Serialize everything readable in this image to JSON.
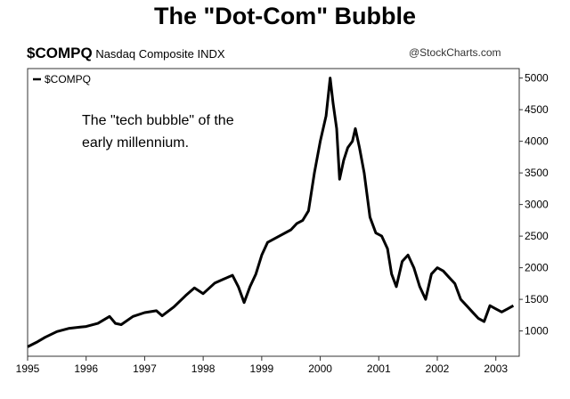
{
  "title": "The \"Dot-Com\" Bubble",
  "header": {
    "symbol": "$COMPQ",
    "name": "Nasdaq Composite",
    "exchange": "INDX",
    "credit": "@StockCharts.com"
  },
  "chart_data": {
    "type": "line",
    "title": "The \"Dot-Com\" Bubble",
    "legend": "$COMPQ",
    "legend_position": "top-left",
    "annotation": [
      "The \"tech bubble\" of the",
      "early millennium."
    ],
    "xlabel": "",
    "ylabel": "",
    "x_ticks": [
      "1995",
      "1996",
      "1997",
      "1998",
      "1999",
      "2000",
      "2001",
      "2002",
      "2003"
    ],
    "y_ticks": [
      1000,
      1500,
      2000,
      2500,
      3000,
      3500,
      4000,
      4500,
      5000
    ],
    "xlim": [
      1995.0,
      2003.4
    ],
    "ylim": [
      600,
      5150
    ],
    "y_axis_side": "right",
    "grid": false,
    "series": [
      {
        "name": "$COMPQ",
        "x": [
          1995.0,
          1995.15,
          1995.3,
          1995.5,
          1995.7,
          1995.9,
          1996.0,
          1996.2,
          1996.4,
          1996.5,
          1996.6,
          1996.8,
          1997.0,
          1997.2,
          1997.3,
          1997.5,
          1997.7,
          1997.85,
          1998.0,
          1998.2,
          1998.35,
          1998.5,
          1998.6,
          1998.7,
          1998.8,
          1998.9,
          1999.0,
          1999.1,
          1999.3,
          1999.5,
          1999.6,
          1999.7,
          1999.8,
          1999.9,
          2000.0,
          2000.1,
          2000.17,
          2000.22,
          2000.28,
          2000.33,
          2000.4,
          2000.47,
          2000.55,
          2000.6,
          2000.67,
          2000.75,
          2000.85,
          2000.95,
          2001.05,
          2001.15,
          2001.22,
          2001.3,
          2001.4,
          2001.5,
          2001.6,
          2001.7,
          2001.8,
          2001.9,
          2002.0,
          2002.1,
          2002.2,
          2002.3,
          2002.4,
          2002.5,
          2002.6,
          2002.7,
          2002.8,
          2002.9,
          2003.0,
          2003.1,
          2003.2,
          2003.3
        ],
        "values": [
          750,
          820,
          900,
          990,
          1040,
          1060,
          1070,
          1120,
          1230,
          1120,
          1100,
          1230,
          1290,
          1320,
          1240,
          1380,
          1560,
          1680,
          1590,
          1760,
          1820,
          1880,
          1700,
          1450,
          1700,
          1900,
          2200,
          2400,
          2500,
          2600,
          2700,
          2750,
          2900,
          3500,
          4000,
          4400,
          5000,
          4600,
          4200,
          3400,
          3700,
          3900,
          4000,
          4200,
          3900,
          3500,
          2800,
          2550,
          2500,
          2300,
          1900,
          1700,
          2100,
          2200,
          2000,
          1700,
          1500,
          1900,
          2000,
          1950,
          1850,
          1750,
          1500,
          1400,
          1300,
          1200,
          1150,
          1400,
          1350,
          1300,
          1350,
          1400
        ]
      }
    ]
  }
}
